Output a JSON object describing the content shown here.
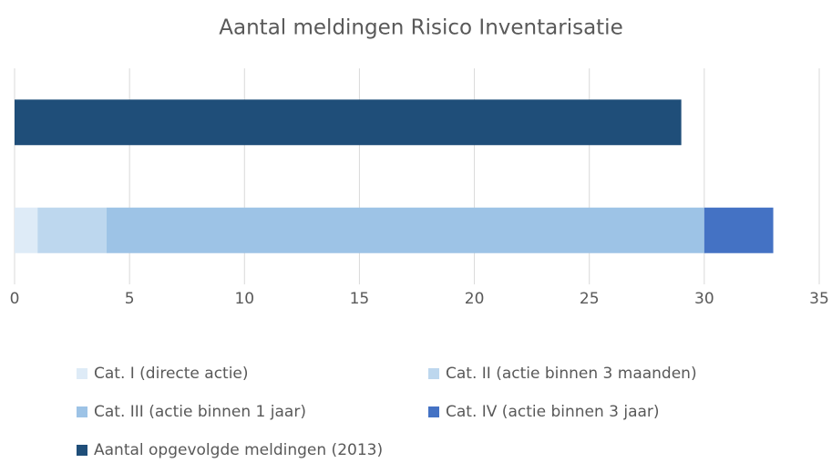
{
  "chart_data": {
    "type": "stacked-bar-horizontal",
    "title": "Aantal meldingen Risico Inventarisatie",
    "categories": [
      null,
      null
    ],
    "series": [
      {
        "name": "Cat. I (directe actie)",
        "color": "#deebf7",
        "values": [
          null,
          1
        ]
      },
      {
        "name": "Cat. II (actie binnen 3 maanden)",
        "color": "#bdd7ee",
        "values": [
          null,
          3
        ]
      },
      {
        "name": "Cat. III (actie binnen 1 jaar)",
        "color": "#9dc3e6",
        "values": [
          null,
          26
        ]
      },
      {
        "name": "Cat. IV (actie binnen 3 jaar)",
        "color": "#4472c4",
        "values": [
          null,
          3
        ]
      },
      {
        "name": "Aantal opgevolgde meldingen (2013)",
        "color": "#1f4e79",
        "values": [
          29,
          null
        ]
      }
    ],
    "xlim": [
      0,
      35
    ],
    "xticks": [
      0,
      5,
      10,
      15,
      20,
      25,
      30,
      35
    ],
    "grid": true,
    "legend": "bottom"
  }
}
